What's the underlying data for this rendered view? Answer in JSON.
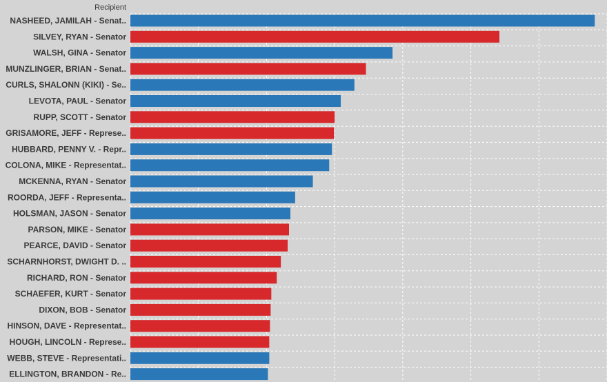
{
  "chart_data": {
    "type": "bar",
    "orientation": "horizontal",
    "ylabel": "Recipient",
    "xlim": [
      0,
      700
    ],
    "grid": true,
    "colors": {
      "blue": "#2a78b7",
      "red": "#d7282b"
    },
    "categories": [
      "NASHEED, JAMILAH - Senat..",
      "SILVEY, RYAN - Senator",
      "WALSH, GINA - Senator",
      "MUNZLINGER, BRIAN - Senat..",
      "CURLS, SHALONN (KIKI) - Se..",
      "LEVOTA, PAUL - Senator",
      "RUPP, SCOTT - Senator",
      "GRISAMORE, JEFF - Represe..",
      "HUBBARD, PENNY V. - Repr..",
      "COLONA, MIKE - Representat..",
      "MCKENNA, RYAN - Senator",
      "ROORDA, JEFF - Representa..",
      "HOLSMAN, JASON - Senator",
      "PARSON, MIKE - Senator",
      "PEARCE, DAVID - Senator",
      "SCHARNHORST, DWIGHT D. ..",
      "RICHARD, RON - Senator",
      "SCHAEFER, KURT - Senator",
      "DIXON, BOB - Senator",
      "HINSON, DAVE - Representat..",
      "HOUGH, LINCOLN - Represe..",
      "WEBB, STEVE - Representati..",
      "ELLINGTON, BRANDON - Re.."
    ],
    "values": [
      682,
      542,
      385,
      346,
      329,
      309,
      300,
      299,
      296,
      292,
      268,
      242,
      235,
      233,
      231,
      221,
      215,
      207,
      206,
      205,
      204,
      204,
      202
    ],
    "bar_colors": [
      "blue",
      "red",
      "blue",
      "red",
      "blue",
      "blue",
      "red",
      "red",
      "blue",
      "blue",
      "blue",
      "blue",
      "blue",
      "red",
      "red",
      "red",
      "red",
      "red",
      "red",
      "red",
      "red",
      "blue",
      "blue"
    ]
  }
}
